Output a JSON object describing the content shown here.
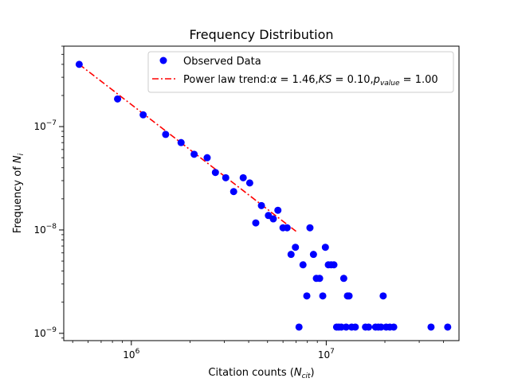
{
  "chart_data": {
    "type": "scatter",
    "title": "Frequency Distribution",
    "xlabel": {
      "main": "Citation counts (",
      "var": "N",
      "sub": "cit",
      "close": ")"
    },
    "ylabel": {
      "main": "Frequency of ",
      "var": "N",
      "sub": "i"
    },
    "xscale": "log",
    "yscale": "log",
    "xlim": [
      450000,
      48000000
    ],
    "ylim": [
      8.5e-10,
      6e-07
    ],
    "legend_position": "top-right",
    "x_ticks": [
      {
        "value": 1000000,
        "base": "10",
        "exp": "6"
      },
      {
        "value": 10000000,
        "base": "10",
        "exp": "7"
      }
    ],
    "y_ticks": [
      {
        "value": 1e-09,
        "base": "10",
        "exp": "−9"
      },
      {
        "value": 1e-08,
        "base": "10",
        "exp": "−8"
      },
      {
        "value": 1e-07,
        "base": "10",
        "exp": "−7"
      }
    ],
    "series": [
      {
        "name": "Observed Data",
        "kind": "points",
        "color": "#0000ff",
        "points": [
          [
            540000,
            4e-07
          ],
          [
            850000,
            1.85e-07
          ],
          [
            1150000,
            1.3e-07
          ],
          [
            1500000,
            8.4e-08
          ],
          [
            1800000,
            7e-08
          ],
          [
            2100000,
            5.4e-08
          ],
          [
            2450000,
            5e-08
          ],
          [
            2700000,
            3.6e-08
          ],
          [
            3050000,
            3.2e-08
          ],
          [
            3350000,
            2.35e-08
          ],
          [
            3750000,
            3.2e-08
          ],
          [
            4050000,
            2.85e-08
          ],
          [
            4350000,
            1.17e-08
          ],
          [
            4650000,
            1.72e-08
          ],
          [
            5050000,
            1.38e-08
          ],
          [
            5350000,
            1.28e-08
          ],
          [
            5650000,
            1.55e-08
          ],
          [
            6000000,
            1.05e-08
          ],
          [
            6300000,
            1.05e-08
          ],
          [
            6600000,
            5.8e-09
          ],
          [
            6950000,
            6.8e-09
          ],
          [
            7250000,
            1.15e-09
          ],
          [
            7600000,
            4.6e-09
          ],
          [
            7950000,
            2.3e-09
          ],
          [
            8250000,
            1.05e-08
          ],
          [
            8600000,
            5.8e-09
          ],
          [
            8900000,
            3.4e-09
          ],
          [
            9250000,
            3.4e-09
          ],
          [
            9600000,
            2.3e-09
          ],
          [
            9900000,
            6.8e-09
          ],
          [
            10250000,
            4.6e-09
          ],
          [
            10600000,
            4.6e-09
          ],
          [
            10950000,
            4.6e-09
          ],
          [
            11300000,
            1.15e-09
          ],
          [
            11600000,
            1.15e-09
          ],
          [
            11950000,
            1.15e-09
          ],
          [
            12300000,
            3.4e-09
          ],
          [
            12650000,
            1.15e-09
          ],
          [
            12850000,
            2.3e-09
          ],
          [
            13100000,
            2.3e-09
          ],
          [
            13500000,
            1.15e-09
          ],
          [
            14100000,
            1.15e-09
          ],
          [
            15900000,
            1.15e-09
          ],
          [
            16500000,
            1.15e-09
          ],
          [
            17900000,
            1.15e-09
          ],
          [
            18500000,
            1.15e-09
          ],
          [
            19100000,
            1.15e-09
          ],
          [
            19600000,
            2.3e-09
          ],
          [
            20300000,
            1.15e-09
          ],
          [
            21200000,
            1.15e-09
          ],
          [
            22200000,
            1.15e-09
          ],
          [
            34500000,
            1.15e-09
          ],
          [
            42000000,
            1.15e-09
          ]
        ]
      },
      {
        "name": "Power law trend",
        "label": {
          "prefix": "Power law trend:",
          "alpha_sym": "α",
          "alpha_val": " = 1.46,",
          "ks": "KS",
          "ks_val": " = 0.10,",
          "p_var": "p",
          "p_sub": "value",
          "p_val": " = 1.00"
        },
        "kind": "line",
        "style": "dash-dot",
        "color": "#ff0000",
        "x": [
          540000,
          7000000
        ],
        "y": [
          4e-07,
          9.7e-09
        ]
      }
    ]
  }
}
